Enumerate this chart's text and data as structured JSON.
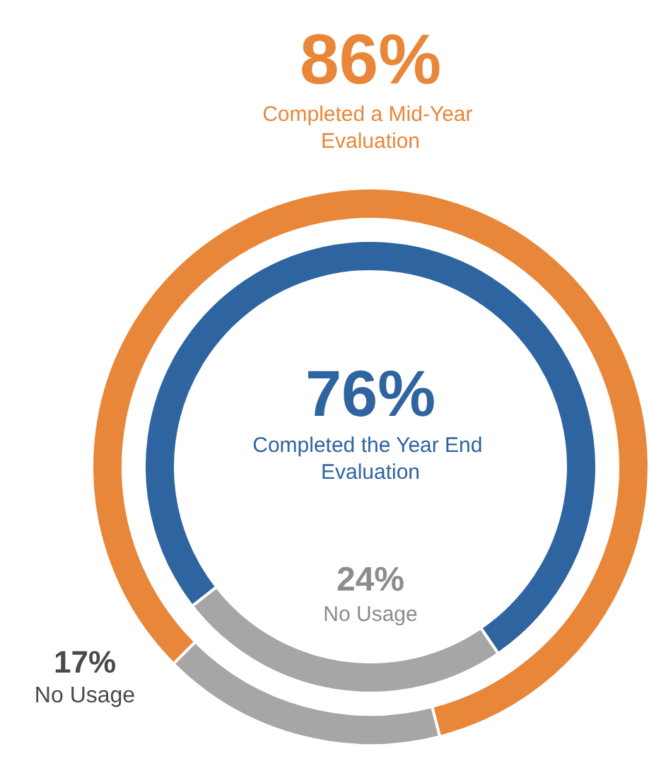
{
  "chart_data": [
    {
      "type": "donut",
      "categories": [
        "Completed a Mid-Year Evaluation",
        "No Usage"
      ],
      "values": [
        86,
        17
      ],
      "value_labels": [
        "86%",
        "17%"
      ],
      "colors": [
        "#e8873a",
        "#a6a6a6"
      ]
    },
    {
      "type": "donut",
      "categories": [
        "Completed the Year End Evaluation",
        "No Usage"
      ],
      "values": [
        76,
        24
      ],
      "value_labels": [
        "76%",
        "24%"
      ],
      "colors": [
        "#2e64a0",
        "#a6a6a6"
      ]
    }
  ]
}
